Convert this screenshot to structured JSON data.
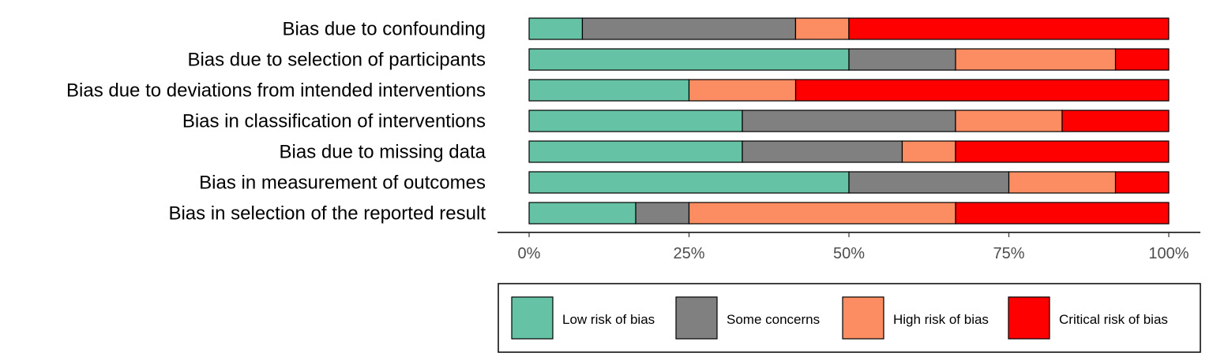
{
  "chart_data": {
    "type": "bar",
    "orientation": "horizontal",
    "stacked": true,
    "categories": [
      "Bias due to confounding",
      "Bias due to selection of participants",
      "Bias due to deviations from intended interventions",
      "Bias in classification of interventions",
      "Bias due to missing data",
      "Bias in measurement of outcomes",
      "Bias in selection of the reported result"
    ],
    "series": [
      {
        "name": "Low risk of bias",
        "color": "#66c2a5",
        "values": [
          8.33,
          50.0,
          25.0,
          33.33,
          33.33,
          50.0,
          16.67
        ]
      },
      {
        "name": "Some concerns",
        "color": "#808080",
        "values": [
          33.33,
          16.67,
          0.0,
          33.33,
          25.0,
          25.0,
          8.33
        ]
      },
      {
        "name": "High risk of bias",
        "color": "#fc8d62",
        "values": [
          8.33,
          25.0,
          16.67,
          16.67,
          8.33,
          16.67,
          41.67
        ]
      },
      {
        "name": "Critical risk of bias",
        "color": "#ff0000",
        "values": [
          50.0,
          8.33,
          58.33,
          16.67,
          33.33,
          8.33,
          33.33
        ]
      }
    ],
    "xlim": [
      0,
      100
    ],
    "xticks": [
      0,
      25,
      50,
      75,
      100
    ],
    "xtick_labels": [
      "0%",
      "25%",
      "50%",
      "75%",
      "100%"
    ],
    "title": "",
    "xlabel": "",
    "ylabel": "",
    "grid": false,
    "legend_position": "bottom"
  }
}
